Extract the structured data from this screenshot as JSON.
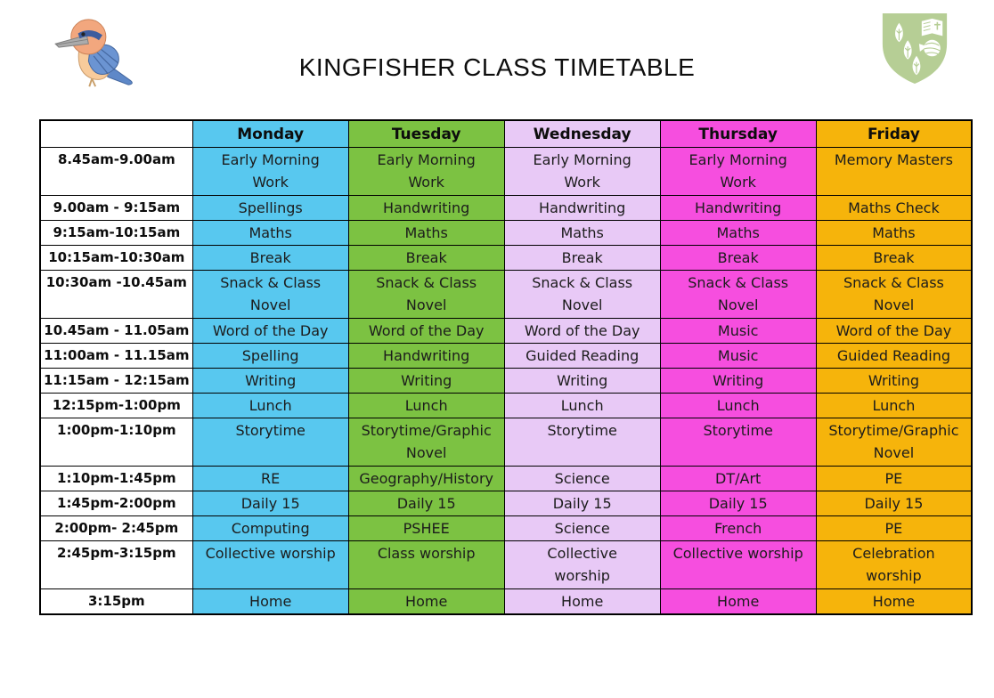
{
  "page": {
    "title": "KINGFISHER CLASS TIMETABLE"
  },
  "logos": {
    "left": "kingfisher-bird-illustration",
    "right": "school-crest-shield-with-leaves-book-and-yarn"
  },
  "colors": {
    "monday": "#58C8EF",
    "tuesday": "#7CC242",
    "wednesday": "#E8C9F6",
    "thursday": "#F64EDF",
    "friday": "#F6B40B",
    "crest_green": "#B6CE95",
    "border": "#000000"
  },
  "timetable": {
    "corner_label": "",
    "days": [
      "Monday",
      "Tuesday",
      "Wednesday",
      "Thursday",
      "Friday"
    ],
    "rows": [
      {
        "time": "8.45am-9.00am",
        "tall": true,
        "cells": [
          "Early Morning\nWork",
          "Early Morning\nWork",
          "Early Morning\nWork",
          "Early Morning\nWork",
          "Memory Masters"
        ]
      },
      {
        "time": "9.00am - 9:15am",
        "tall": false,
        "cells": [
          "Spellings",
          "Handwriting",
          "Handwriting",
          "Handwriting",
          "Maths Check"
        ]
      },
      {
        "time": "9:15am-10:15am",
        "tall": false,
        "cells": [
          "Maths",
          "Maths",
          "Maths",
          "Maths",
          "Maths"
        ]
      },
      {
        "time": "10:15am-10:30am",
        "tall": false,
        "cells": [
          "Break",
          "Break",
          "Break",
          "Break",
          "Break"
        ]
      },
      {
        "time": "10:30am -10.45am",
        "tall": true,
        "cells": [
          "Snack & Class\nNovel",
          "Snack & Class\nNovel",
          "Snack & Class\nNovel",
          "Snack & Class\nNovel",
          "Snack & Class\nNovel"
        ]
      },
      {
        "time": "10.45am - 11.05am",
        "tall": false,
        "cells": [
          "Word of the Day",
          "Word of the Day",
          "Word of the Day",
          "Music",
          "Word of the Day"
        ]
      },
      {
        "time": "11:00am - 11.15am",
        "tall": false,
        "cells": [
          "Spelling",
          "Handwriting",
          "Guided Reading",
          "Music",
          "Guided Reading"
        ]
      },
      {
        "time": "11:15am - 12:15am",
        "tall": false,
        "cells": [
          "Writing",
          "Writing",
          "Writing",
          "Writing",
          "Writing"
        ]
      },
      {
        "time": "12:15pm-1:00pm",
        "tall": false,
        "cells": [
          "Lunch",
          "Lunch",
          "Lunch",
          "Lunch",
          "Lunch"
        ]
      },
      {
        "time": "1:00pm-1:10pm",
        "tall": true,
        "cells": [
          "Storytime",
          "Storytime/Graphic\nNovel",
          "Storytime",
          "Storytime",
          "Storytime/Graphic\nNovel"
        ]
      },
      {
        "time": "1:10pm-1:45pm",
        "tall": false,
        "cells": [
          "RE",
          "Geography/History",
          "Science",
          "DT/Art",
          "PE"
        ]
      },
      {
        "time": "1:45pm-2:00pm",
        "tall": false,
        "cells": [
          "Daily 15",
          "Daily 15",
          "Daily 15",
          "Daily 15",
          "Daily 15"
        ]
      },
      {
        "time": "2:00pm- 2:45pm",
        "tall": false,
        "cells": [
          "Computing",
          "PSHEE",
          "Science",
          "French",
          "PE"
        ]
      },
      {
        "time": "2:45pm-3:15pm",
        "tall": true,
        "cells": [
          "Collective worship",
          "Class worship",
          "Collective\nworship",
          "Collective worship",
          "Celebration\nworship"
        ]
      },
      {
        "time": "3:15pm",
        "tall": false,
        "cells": [
          "Home",
          "Home",
          "Home",
          "Home",
          "Home"
        ]
      }
    ]
  }
}
